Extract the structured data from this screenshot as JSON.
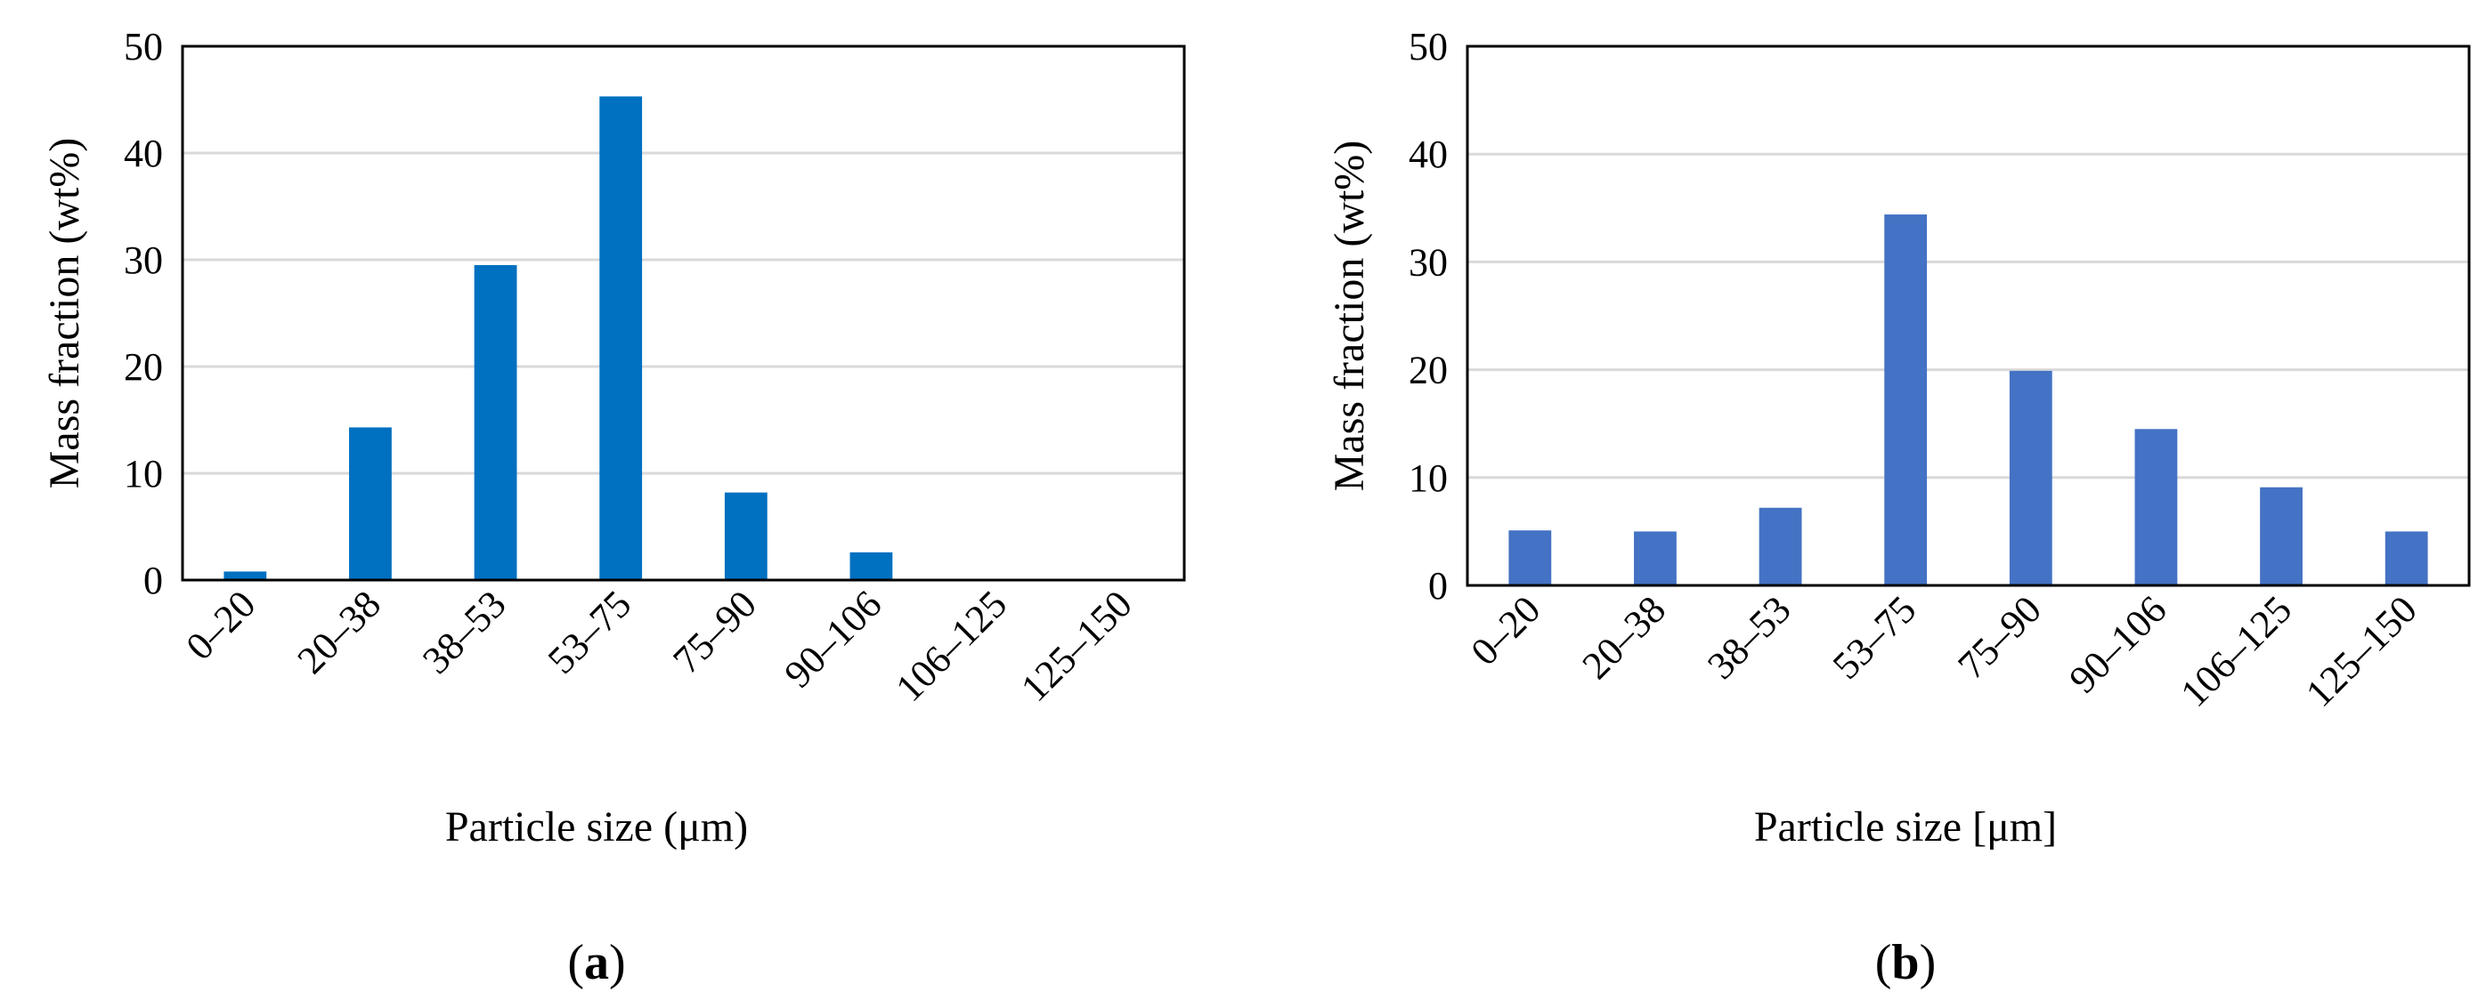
{
  "chart_data": [
    {
      "type": "bar",
      "panel_label": "a",
      "categories": [
        "0–20",
        "20–38",
        "38–53",
        "53–75",
        "75–90",
        "90–106",
        "106–125",
        "125–150"
      ],
      "values": [
        0.8,
        14.3,
        29.5,
        45.3,
        8.2,
        2.6,
        0,
        0
      ],
      "xlabel": "Particle size (μm)",
      "ylabel": "Mass fraction (wt%)",
      "ylim": [
        0,
        50
      ],
      "yticks": [
        0,
        10,
        20,
        30,
        40,
        50
      ],
      "grid": "horizontal",
      "bar_color": "#0070C0"
    },
    {
      "type": "bar",
      "panel_label": "b",
      "categories": [
        "0–20",
        "20–38",
        "38–53",
        "53–75",
        "75–90",
        "90–106",
        "106–125",
        "125–150"
      ],
      "values": [
        5.1,
        5.0,
        7.2,
        34.4,
        19.9,
        14.5,
        9.1,
        5.0
      ],
      "xlabel": "Particle size [μm]",
      "ylabel": "Mass fraction (wt%)",
      "ylim": [
        0,
        50
      ],
      "yticks": [
        0,
        10,
        20,
        30,
        40,
        50
      ],
      "grid": "horizontal",
      "bar_color": "#4472C4"
    }
  ]
}
